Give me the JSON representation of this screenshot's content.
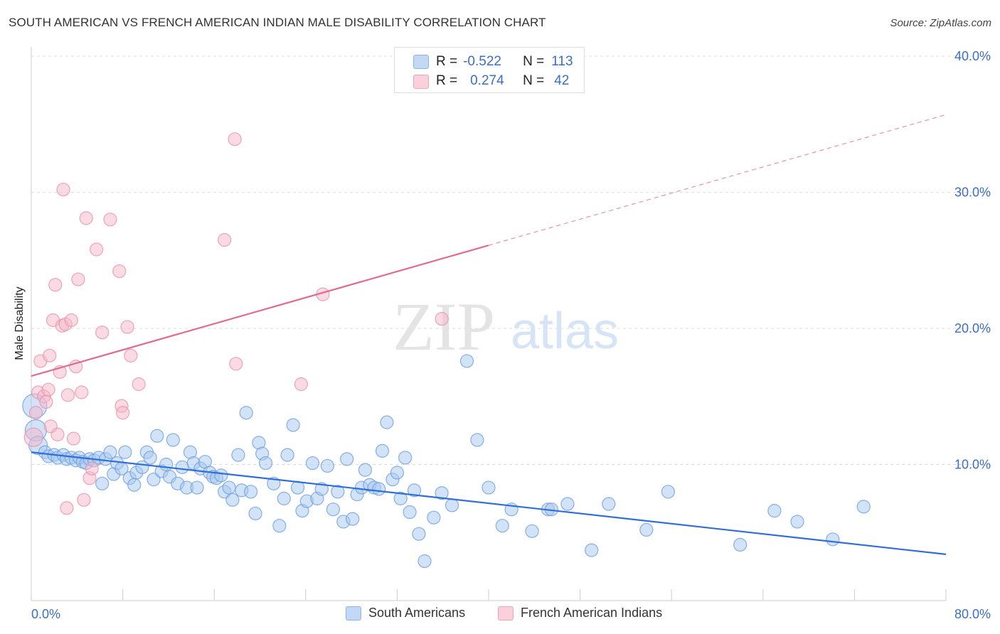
{
  "header": {
    "title": "SOUTH AMERICAN VS FRENCH AMERICAN INDIAN MALE DISABILITY CORRELATION CHART",
    "source": "Source: ZipAtlas.com"
  },
  "watermark": {
    "zip": "ZIP",
    "atlas": "atlas"
  },
  "legend": {
    "rows": [
      {
        "r_label": "R =",
        "r_value": "-0.522",
        "n_label": "N =",
        "n_value": "113",
        "color": "#a8c8f0"
      },
      {
        "r_label": "R =",
        "r_value": "0.274",
        "n_label": "N =",
        "n_value": "42",
        "color": "#f5b8c9"
      }
    ]
  },
  "bottom_legend": [
    "South Americans",
    "French American Indians"
  ],
  "chart_data": {
    "type": "scatter",
    "ylabel": "Male Disability",
    "xlim": [
      0,
      80
    ],
    "ylim": [
      0,
      40
    ],
    "x_tick_labels": [
      "0.0%",
      "80.0%"
    ],
    "y_ticks": [
      10,
      20,
      30,
      40
    ],
    "y_tick_labels": [
      "10.0%",
      "20.0%",
      "30.0%",
      "40.0%"
    ],
    "grid": true,
    "series": [
      {
        "name": "South Americans",
        "color": "#6a9ee0",
        "fill": "#a8c8f0",
        "trend": {
          "x0": 0,
          "y0": 10.9,
          "x1": 80,
          "y1": 3.4,
          "dashed_from": 80
        },
        "points": [
          [
            0.3,
            14.3
          ],
          [
            0.4,
            12.5
          ],
          [
            0.6,
            11.4
          ],
          [
            1.2,
            10.9
          ],
          [
            1.5,
            10.6
          ],
          [
            2,
            10.7
          ],
          [
            2.3,
            10.5
          ],
          [
            2.8,
            10.7
          ],
          [
            3.1,
            10.4
          ],
          [
            3.5,
            10.5
          ],
          [
            3.9,
            10.3
          ],
          [
            4.2,
            10.5
          ],
          [
            4.5,
            10.2
          ],
          [
            4.8,
            10.1
          ],
          [
            5.1,
            10.4
          ],
          [
            5.5,
            10.3
          ],
          [
            5.9,
            10.5
          ],
          [
            6.2,
            8.6
          ],
          [
            6.5,
            10.4
          ],
          [
            6.9,
            10.9
          ],
          [
            7.2,
            9.3
          ],
          [
            7.5,
            10.1
          ],
          [
            7.9,
            9.7
          ],
          [
            8.2,
            10.9
          ],
          [
            8.6,
            9.0
          ],
          [
            9.0,
            8.5
          ],
          [
            9.2,
            9.4
          ],
          [
            9.7,
            9.8
          ],
          [
            10.1,
            10.9
          ],
          [
            10.4,
            10.5
          ],
          [
            10.7,
            8.9
          ],
          [
            11.0,
            12.1
          ],
          [
            11.4,
            9.5
          ],
          [
            11.8,
            10.0
          ],
          [
            12.1,
            9.1
          ],
          [
            12.4,
            11.8
          ],
          [
            12.8,
            8.6
          ],
          [
            13.2,
            9.8
          ],
          [
            13.6,
            8.3
          ],
          [
            13.9,
            10.9
          ],
          [
            14.2,
            10.1
          ],
          [
            14.5,
            8.3
          ],
          [
            14.8,
            9.7
          ],
          [
            15.2,
            10.2
          ],
          [
            15.6,
            9.4
          ],
          [
            15.9,
            9.1
          ],
          [
            16.2,
            9.0
          ],
          [
            16.6,
            9.2
          ],
          [
            16.9,
            8.0
          ],
          [
            17.3,
            8.3
          ],
          [
            17.6,
            7.4
          ],
          [
            18.1,
            10.7
          ],
          [
            18.4,
            8.1
          ],
          [
            18.8,
            13.8
          ],
          [
            19.2,
            8.0
          ],
          [
            19.6,
            6.4
          ],
          [
            19.9,
            11.6
          ],
          [
            20.2,
            10.8
          ],
          [
            20.5,
            10.1
          ],
          [
            21.2,
            8.6
          ],
          [
            21.7,
            5.5
          ],
          [
            22.1,
            7.5
          ],
          [
            22.4,
            10.7
          ],
          [
            22.9,
            12.9
          ],
          [
            23.3,
            8.3
          ],
          [
            23.7,
            6.6
          ],
          [
            24.1,
            7.3
          ],
          [
            24.6,
            10.1
          ],
          [
            25.0,
            7.5
          ],
          [
            25.4,
            8.2
          ],
          [
            25.9,
            9.9
          ],
          [
            26.4,
            6.7
          ],
          [
            26.8,
            8.0
          ],
          [
            27.3,
            5.8
          ],
          [
            27.6,
            10.4
          ],
          [
            28.1,
            6.0
          ],
          [
            28.5,
            7.8
          ],
          [
            28.9,
            8.3
          ],
          [
            29.2,
            9.6
          ],
          [
            29.6,
            8.5
          ],
          [
            30.0,
            8.3
          ],
          [
            30.4,
            8.2
          ],
          [
            30.7,
            11.0
          ],
          [
            31.1,
            13.1
          ],
          [
            31.6,
            8.9
          ],
          [
            32.0,
            9.4
          ],
          [
            32.3,
            7.5
          ],
          [
            32.7,
            10.5
          ],
          [
            33.1,
            6.5
          ],
          [
            33.5,
            8.1
          ],
          [
            33.9,
            4.9
          ],
          [
            34.4,
            2.9
          ],
          [
            35.2,
            6.1
          ],
          [
            35.9,
            7.9
          ],
          [
            36.8,
            7.0
          ],
          [
            38.1,
            17.6
          ],
          [
            39.0,
            11.8
          ],
          [
            40.0,
            8.3
          ],
          [
            41.2,
            5.5
          ],
          [
            42.0,
            6.7
          ],
          [
            43.8,
            5.1
          ],
          [
            45.2,
            6.7
          ],
          [
            45.5,
            6.7
          ],
          [
            46.9,
            7.1
          ],
          [
            49.0,
            3.7
          ],
          [
            50.5,
            7.1
          ],
          [
            53.8,
            5.2
          ],
          [
            55.7,
            8.0
          ],
          [
            62.0,
            4.1
          ],
          [
            65.0,
            6.6
          ],
          [
            67.0,
            5.8
          ],
          [
            70.1,
            4.5
          ],
          [
            72.8,
            6.9
          ]
        ]
      },
      {
        "name": "French American Indians",
        "color": "#e890aa",
        "fill": "#f5b8c9",
        "trend": {
          "x0": 0,
          "y0": 16.5,
          "x1": 40,
          "y1": 26.1,
          "dashed_to": 80,
          "dashed_y": 35.7
        },
        "points": [
          [
            0.2,
            12.0
          ],
          [
            0.4,
            13.8
          ],
          [
            0.6,
            15.3
          ],
          [
            0.8,
            17.6
          ],
          [
            1.1,
            15.0
          ],
          [
            1.3,
            14.6
          ],
          [
            1.5,
            15.5
          ],
          [
            1.6,
            18.0
          ],
          [
            1.7,
            12.8
          ],
          [
            1.9,
            20.6
          ],
          [
            2.1,
            23.2
          ],
          [
            2.3,
            12.2
          ],
          [
            2.5,
            16.8
          ],
          [
            2.7,
            20.2
          ],
          [
            2.8,
            30.2
          ],
          [
            3.0,
            20.3
          ],
          [
            3.1,
            6.8
          ],
          [
            3.2,
            15.1
          ],
          [
            3.5,
            20.6
          ],
          [
            3.7,
            11.9
          ],
          [
            3.9,
            17.2
          ],
          [
            4.1,
            23.6
          ],
          [
            4.4,
            15.3
          ],
          [
            4.6,
            7.4
          ],
          [
            4.8,
            28.1
          ],
          [
            5.1,
            9.0
          ],
          [
            5.3,
            9.7
          ],
          [
            5.7,
            25.8
          ],
          [
            6.2,
            19.7
          ],
          [
            6.9,
            28.0
          ],
          [
            7.7,
            24.2
          ],
          [
            7.9,
            14.3
          ],
          [
            8.0,
            13.8
          ],
          [
            8.4,
            20.1
          ],
          [
            8.7,
            18.0
          ],
          [
            9.4,
            15.9
          ],
          [
            16.9,
            26.5
          ],
          [
            17.8,
            33.9
          ],
          [
            17.9,
            17.4
          ],
          [
            23.6,
            15.9
          ],
          [
            35.9,
            20.7
          ],
          [
            25.5,
            22.5
          ]
        ]
      }
    ]
  }
}
